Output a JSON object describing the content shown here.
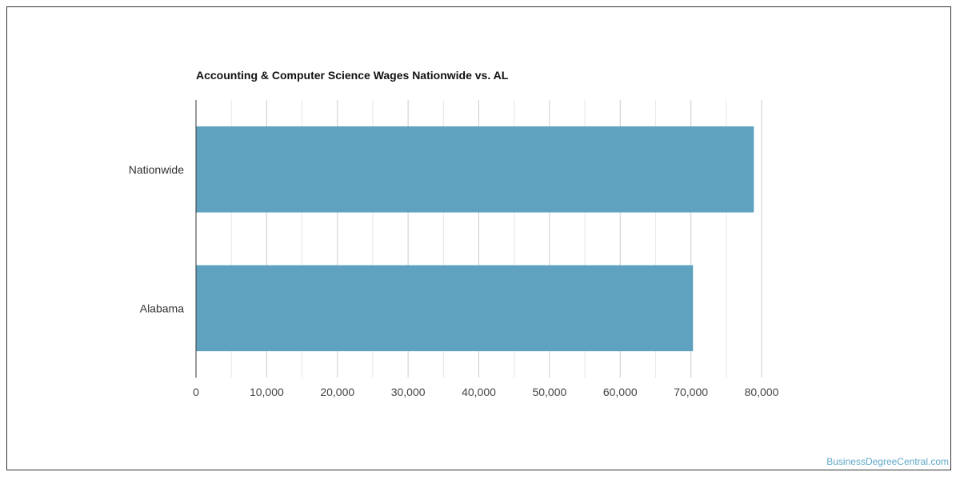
{
  "colors": {
    "bar": "#5fa2bf",
    "grid_major": "#cccccc",
    "grid_minor": "#e6e6e6",
    "axis": "#333333",
    "tick_text": "#444444",
    "watermark": "#5fa8c9"
  },
  "chart_data": {
    "type": "bar",
    "orientation": "horizontal",
    "title": "Accounting & Computer Science Wages Nationwide vs. AL",
    "categories": [
      "Nationwide",
      "Alabama"
    ],
    "values": [
      78900,
      70300
    ],
    "xlim": [
      0,
      80000
    ],
    "x_ticks": [
      "0",
      "10,000",
      "20,000",
      "30,000",
      "40,000",
      "50,000",
      "60,000",
      "70,000",
      "80,000"
    ],
    "grid": true,
    "xlabel": "",
    "ylabel": ""
  },
  "watermark": "BusinessDegreeCentral.com"
}
